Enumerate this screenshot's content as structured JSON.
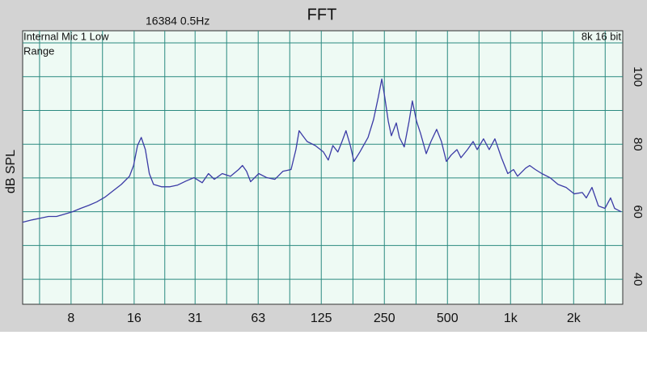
{
  "chart_data": {
    "type": "line",
    "title": "FFT",
    "subtitle": "16384  0.5Hz",
    "annotations": [
      "Internal Mic 1 Low",
      "Range",
      "8k 16 bit"
    ],
    "y_label": "dB SPL",
    "xscale": "log",
    "grid": true,
    "xlim": [
      4.7,
      3430
    ],
    "ylim": [
      32.6,
      113.6
    ],
    "xticks": [
      8,
      16,
      {
        "value": 31.25,
        "label": "31"
      },
      {
        "value": 62.5,
        "label": "63"
      },
      125,
      250,
      500,
      {
        "value": 1000,
        "label": "1k"
      },
      {
        "value": 2000,
        "label": "2k"
      }
    ],
    "xminor": [
      5.66,
      11.3,
      22.4,
      44.2,
      88.4,
      177,
      354,
      707,
      1414,
      2828
    ],
    "yticks": [
      40,
      60,
      80,
      100
    ],
    "yminor": [
      50,
      70,
      90,
      110
    ],
    "x": [
      4.7,
      5.22,
      5.71,
      6.24,
      6.82,
      7.45,
      8.14,
      8.89,
      9.72,
      10.6,
      11.6,
      12.7,
      13.9,
      15.2,
      15.9,
      16.6,
      17.3,
      18.1,
      18.9,
      19.8,
      21.6,
      23.7,
      25.8,
      28.3,
      30.9,
      33.8,
      36.2,
      38.6,
      42.1,
      46.1,
      50.4,
      52.6,
      55.0,
      57.5,
      62.9,
      68.7,
      75.1,
      82.1,
      89.7,
      94.6,
      98.0,
      102,
      107,
      117,
      128,
      135,
      142,
      150,
      157,
      164,
      172,
      179,
      191,
      209,
      222,
      234,
      243,
      251,
      261,
      270,
      285,
      295,
      311,
      328,
      340,
      356,
      372,
      396,
      417,
      444,
      468,
      494,
      521,
      555,
      580,
      623,
      663,
      693,
      743,
      791,
      842,
      905,
      970,
      1033,
      1080,
      1180,
      1234,
      1313,
      1410,
      1542,
      1685,
      1841,
      2012,
      2199,
      2299,
      2446,
      2626,
      2822,
      3001,
      3137,
      3370
    ],
    "series": [
      {
        "color": "#3b3ba6",
        "values": [
          56.9,
          57.6,
          58.1,
          58.6,
          58.6,
          59.3,
          60.0,
          61.0,
          61.9,
          62.9,
          64.3,
          66.2,
          68.1,
          70.5,
          73.7,
          79.6,
          82.0,
          78.4,
          71.3,
          68.1,
          67.4,
          67.4,
          67.9,
          69.1,
          70.1,
          68.6,
          71.3,
          69.6,
          71.3,
          70.5,
          72.5,
          73.7,
          72.0,
          68.9,
          71.3,
          70.1,
          69.6,
          72.0,
          72.5,
          78.4,
          84.0,
          82.5,
          80.8,
          79.6,
          77.7,
          75.3,
          79.6,
          77.7,
          80.8,
          84.0,
          79.6,
          74.9,
          77.7,
          82.0,
          87.3,
          94.0,
          99.3,
          94.0,
          86.8,
          82.5,
          86.3,
          82.0,
          79.2,
          86.8,
          92.8,
          86.8,
          83.2,
          77.2,
          80.8,
          84.4,
          80.8,
          74.9,
          76.8,
          78.4,
          76.0,
          78.4,
          80.8,
          78.4,
          81.6,
          78.4,
          81.6,
          76.0,
          71.3,
          72.5,
          70.5,
          72.9,
          73.7,
          72.5,
          71.3,
          70.1,
          68.1,
          67.2,
          65.3,
          65.7,
          64.1,
          67.2,
          61.7,
          61.0,
          64.1,
          61.0,
          60.0
        ]
      }
    ]
  }
}
